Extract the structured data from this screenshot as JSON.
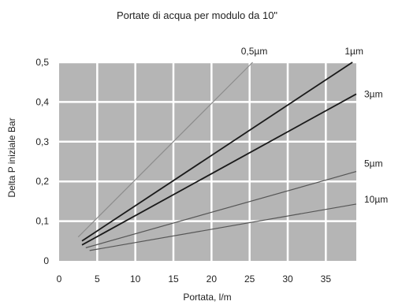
{
  "chart_data": {
    "type": "line",
    "title": "Portate di acqua per modulo da 10\"",
    "xlabel": "Portata, l/m",
    "ylabel": "Delta P iniziale Bar",
    "xlim": [
      0,
      39
    ],
    "ylim": [
      0,
      0.5
    ],
    "x_ticks": [
      "0",
      "5",
      "10",
      "15",
      "20",
      "25",
      "30",
      "35"
    ],
    "y_ticks": [
      "0",
      "0,1",
      "0,2",
      "0,3",
      "0,4",
      "0,5"
    ],
    "grid": true,
    "plot_background": "#b5b5b5",
    "grid_color": "#ffffff",
    "series": [
      {
        "name": "0,5µm",
        "color": "#8c8c8c",
        "x": [
          2.5,
          25.4
        ],
        "y": [
          0.06,
          0.5
        ]
      },
      {
        "name": "1µm",
        "color": "#1a1a1a",
        "x": [
          3,
          38.5
        ],
        "y": [
          0.05,
          0.5
        ]
      },
      {
        "name": "3µm",
        "color": "#1a1a1a",
        "x": [
          3,
          39
        ],
        "y": [
          0.04,
          0.42
        ]
      },
      {
        "name": "5µm",
        "color": "#555555",
        "x": [
          3.5,
          39
        ],
        "y": [
          0.033,
          0.225
        ]
      },
      {
        "name": "10µm",
        "color": "#555555",
        "x": [
          4,
          39
        ],
        "y": [
          0.026,
          0.143
        ]
      }
    ]
  }
}
